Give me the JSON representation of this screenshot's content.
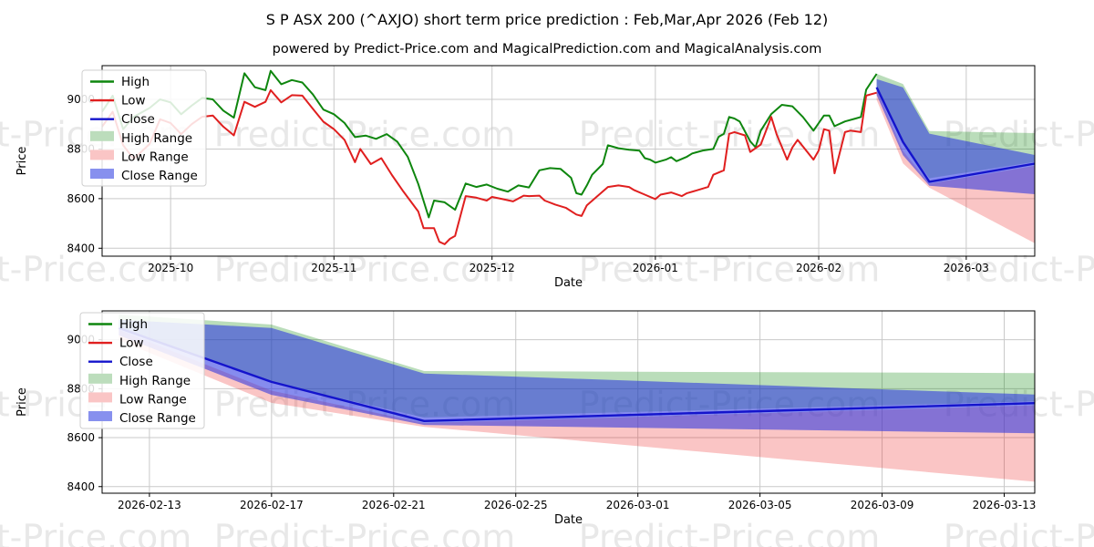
{
  "header": {
    "title": "S P ASX 200 (^AXJO) short term price prediction : Feb,Mar,Apr 2026 (Feb 12)",
    "subtitle": "powered by Predict-Price.com and MagicalPrediction.com and MagicalAnalysis.com"
  },
  "watermark": {
    "text": "Predict-Price.com"
  },
  "chart_data": {
    "type": "line",
    "colors": {
      "high": "#0e860e",
      "low": "#e01f1f",
      "close": "#1414cc",
      "high_range_fill": "rgba(0,128,0,0.27)",
      "low_range_fill": "rgba(235,25,25,0.25)",
      "close_range_fill": "rgba(40,50,225,0.56)",
      "high_range_legend": "#bcddbc",
      "low_range_legend": "#fac5c5",
      "close_range_legend": "#8790ee",
      "grid": "#c9c9c9",
      "watermark": "#8c8c8c"
    },
    "legend_items": [
      {
        "label": "High",
        "swatch": "line",
        "color_key": "high"
      },
      {
        "label": "Low",
        "swatch": "line",
        "color_key": "low"
      },
      {
        "label": "Close",
        "swatch": "line",
        "color_key": "close"
      },
      {
        "label": "High Range",
        "swatch": "patch",
        "color_key": "high_range_legend"
      },
      {
        "label": "Low Range",
        "swatch": "patch",
        "color_key": "low_range_legend"
      },
      {
        "label": "Close Range",
        "swatch": "patch",
        "color_key": "close_range_legend"
      }
    ],
    "history": {
      "start_date": "2025-09-18",
      "high": [
        [
          0,
          8950
        ],
        [
          2,
          9015
        ],
        [
          4,
          8880
        ],
        [
          6,
          8930
        ],
        [
          9,
          8965
        ],
        [
          11,
          9000
        ],
        [
          13,
          8988
        ],
        [
          15,
          8940
        ],
        [
          17,
          8975
        ],
        [
          19,
          9006
        ],
        [
          21,
          9000
        ],
        [
          23,
          8955
        ],
        [
          25,
          8926
        ],
        [
          27,
          9105
        ],
        [
          29,
          9049
        ],
        [
          31,
          9037
        ],
        [
          32,
          9115
        ],
        [
          34,
          9061
        ],
        [
          36,
          9078
        ],
        [
          38,
          9068
        ],
        [
          40,
          9020
        ],
        [
          42,
          8959
        ],
        [
          44,
          8940
        ],
        [
          46,
          8905
        ],
        [
          48,
          8848
        ],
        [
          50,
          8854
        ],
        [
          52,
          8841
        ],
        [
          54,
          8860
        ],
        [
          56,
          8830
        ],
        [
          58,
          8769
        ],
        [
          60,
          8659
        ],
        [
          62,
          8524
        ],
        [
          63,
          8592
        ],
        [
          65,
          8585
        ],
        [
          67,
          8555
        ],
        [
          69,
          8661
        ],
        [
          71,
          8647
        ],
        [
          73,
          8657
        ],
        [
          75,
          8640
        ],
        [
          77,
          8628
        ],
        [
          79,
          8653
        ],
        [
          81,
          8645
        ],
        [
          83,
          8714
        ],
        [
          85,
          8723
        ],
        [
          87,
          8720
        ],
        [
          89,
          8684
        ],
        [
          90,
          8622
        ],
        [
          91,
          8616
        ],
        [
          92,
          8653
        ],
        [
          93,
          8696
        ],
        [
          95,
          8739
        ],
        [
          96,
          8815
        ],
        [
          98,
          8803
        ],
        [
          100,
          8797
        ],
        [
          102,
          8793
        ],
        [
          103,
          8763
        ],
        [
          104,
          8757
        ],
        [
          105,
          8745
        ],
        [
          107,
          8757
        ],
        [
          108,
          8767
        ],
        [
          109,
          8751
        ],
        [
          111,
          8769
        ],
        [
          112,
          8782
        ],
        [
          114,
          8794
        ],
        [
          116,
          8800
        ],
        [
          117,
          8849
        ],
        [
          118,
          8861
        ],
        [
          119,
          8929
        ],
        [
          120,
          8923
        ],
        [
          121,
          8911
        ],
        [
          123,
          8831
        ],
        [
          124,
          8807
        ],
        [
          125,
          8874
        ],
        [
          127,
          8941
        ],
        [
          129,
          8978
        ],
        [
          131,
          8972
        ],
        [
          133,
          8929
        ],
        [
          135,
          8874
        ],
        [
          136,
          8904
        ],
        [
          137,
          8935
        ],
        [
          138,
          8935
        ],
        [
          139,
          8892
        ],
        [
          141,
          8911
        ],
        [
          143,
          8923
        ],
        [
          144,
          8929
        ],
        [
          145,
          9039
        ],
        [
          147,
          9103
        ]
      ],
      "low": [
        [
          0,
          8890
        ],
        [
          2,
          8950
        ],
        [
          4,
          8815
        ],
        [
          6,
          8760
        ],
        [
          9,
          8820
        ],
        [
          11,
          8920
        ],
        [
          13,
          8905
        ],
        [
          15,
          8860
        ],
        [
          17,
          8900
        ],
        [
          19,
          8930
        ],
        [
          21,
          8935
        ],
        [
          23,
          8890
        ],
        [
          25,
          8855
        ],
        [
          27,
          8990
        ],
        [
          29,
          8970
        ],
        [
          31,
          8990
        ],
        [
          32,
          9037
        ],
        [
          34,
          8988
        ],
        [
          36,
          9017
        ],
        [
          38,
          9015
        ],
        [
          40,
          8962
        ],
        [
          42,
          8910
        ],
        [
          44,
          8880
        ],
        [
          46,
          8837
        ],
        [
          48,
          8747
        ],
        [
          49,
          8800
        ],
        [
          51,
          8739
        ],
        [
          53,
          8763
        ],
        [
          55,
          8695
        ],
        [
          57,
          8634
        ],
        [
          60,
          8548
        ],
        [
          61,
          8481
        ],
        [
          63,
          8481
        ],
        [
          64,
          8426
        ],
        [
          65,
          8416
        ],
        [
          66,
          8438
        ],
        [
          67,
          8450
        ],
        [
          69,
          8610
        ],
        [
          71,
          8604
        ],
        [
          73,
          8592
        ],
        [
          74,
          8607
        ],
        [
          76,
          8598
        ],
        [
          78,
          8589
        ],
        [
          80,
          8612
        ],
        [
          81,
          8610
        ],
        [
          83,
          8612
        ],
        [
          84,
          8592
        ],
        [
          86,
          8576
        ],
        [
          88,
          8563
        ],
        [
          90,
          8536
        ],
        [
          91,
          8530
        ],
        [
          92,
          8573
        ],
        [
          94,
          8610
        ],
        [
          96,
          8647
        ],
        [
          98,
          8653
        ],
        [
          100,
          8647
        ],
        [
          101,
          8634
        ],
        [
          103,
          8616
        ],
        [
          105,
          8598
        ],
        [
          106,
          8616
        ],
        [
          108,
          8625
        ],
        [
          110,
          8610
        ],
        [
          111,
          8622
        ],
        [
          113,
          8634
        ],
        [
          115,
          8647
        ],
        [
          116,
          8696
        ],
        [
          118,
          8714
        ],
        [
          119,
          8861
        ],
        [
          120,
          8868
        ],
        [
          122,
          8855
        ],
        [
          123,
          8788
        ],
        [
          125,
          8818
        ],
        [
          127,
          8929
        ],
        [
          128,
          8860
        ],
        [
          130,
          8757
        ],
        [
          131,
          8806
        ],
        [
          132,
          8837
        ],
        [
          135,
          8757
        ],
        [
          136,
          8794
        ],
        [
          137,
          8880
        ],
        [
          138,
          8874
        ],
        [
          139,
          8702
        ],
        [
          141,
          8868
        ],
        [
          142,
          8874
        ],
        [
          144,
          8868
        ],
        [
          145,
          9015
        ],
        [
          147,
          9027
        ]
      ]
    },
    "prediction": {
      "start_date": "2026-02-12",
      "days": [
        0,
        5,
        10,
        30
      ],
      "close": [
        9048,
        8828,
        8668,
        8741
      ],
      "close_upper": [
        9082,
        9048,
        8862,
        8776
      ],
      "close_lower": [
        9018,
        8775,
        8652,
        8618
      ],
      "high_upper": [
        9103,
        9062,
        8872,
        8864
      ],
      "high_lower": [
        9045,
        8825,
        8682,
        8748
      ],
      "low_upper": [
        9040,
        8792,
        8660,
        8732
      ],
      "low_lower": [
        8998,
        8742,
        8644,
        8420
      ]
    },
    "charts": [
      {
        "id": "history-with-forecast",
        "ylabel": "Price",
        "xlabel": "Date",
        "x_range": [
          0,
          177
        ],
        "y_range": [
          8368,
          9136
        ],
        "y_ticks": [
          8400,
          8600,
          8800,
          9000
        ],
        "x_ticks": [
          {
            "day": 13,
            "label": "2025-10"
          },
          {
            "day": 44,
            "label": "2025-11"
          },
          {
            "day": 74,
            "label": "2025-12"
          },
          {
            "day": 105,
            "label": "2026-01"
          },
          {
            "day": 136,
            "label": "2026-02"
          },
          {
            "day": 164,
            "label": "2026-03"
          }
        ],
        "show_history": true,
        "pred_day_offset": 147
      },
      {
        "id": "forecast-detail",
        "ylabel": "Price",
        "xlabel": "Date",
        "x_range": [
          -0.55,
          30
        ],
        "y_range": [
          8373,
          9118
        ],
        "y_ticks": [
          8400,
          8600,
          8800,
          9000
        ],
        "x_ticks": [
          {
            "day": 1,
            "label": "2026-02-13"
          },
          {
            "day": 5,
            "label": "2026-02-17"
          },
          {
            "day": 9,
            "label": "2026-02-21"
          },
          {
            "day": 13,
            "label": "2026-02-25"
          },
          {
            "day": 17,
            "label": "2026-03-01"
          },
          {
            "day": 21,
            "label": "2026-03-05"
          },
          {
            "day": 25,
            "label": "2026-03-09"
          },
          {
            "day": 29,
            "label": "2026-03-13"
          }
        ],
        "show_history": false,
        "pred_day_offset": 0
      }
    ]
  }
}
